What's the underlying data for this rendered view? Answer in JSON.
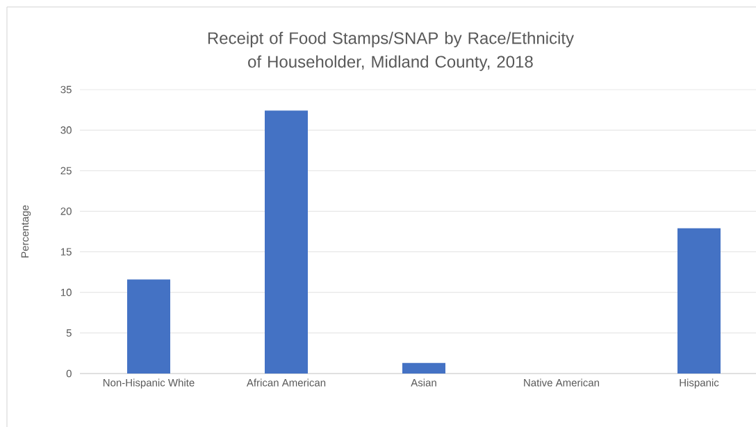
{
  "chart_data": {
    "type": "bar",
    "title": "Receipt of Food Stamps/SNAP by Race/Ethnicity of Householder, Midland County, 2018",
    "ylabel": "Percentage",
    "categories": [
      "Non-Hispanic White",
      "African American",
      "Asian",
      "Native American",
      "Hispanic"
    ],
    "values": [
      11.6,
      32.4,
      1.3,
      0,
      17.9
    ],
    "color": "#4472c4",
    "ylim": [
      0,
      35
    ],
    "yticks": [
      0,
      5,
      10,
      15,
      20,
      25,
      30,
      35
    ],
    "grid": "y"
  }
}
